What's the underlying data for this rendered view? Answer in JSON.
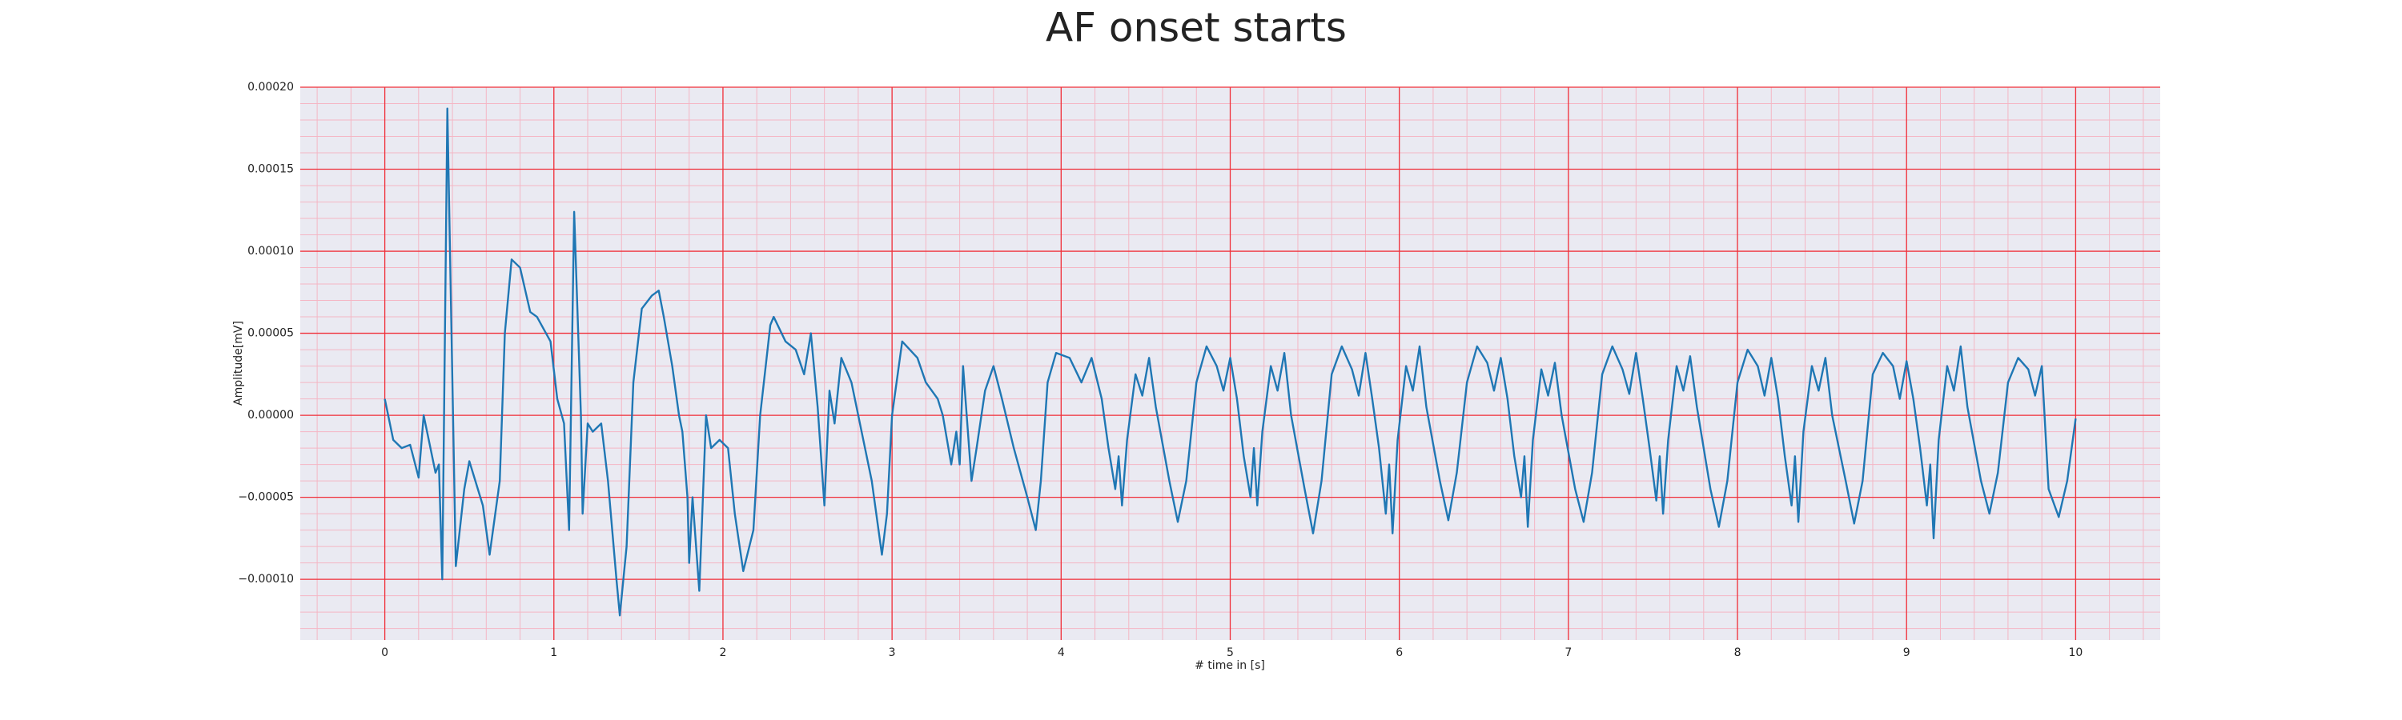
{
  "chart_data": {
    "type": "line",
    "title": "AF onset starts",
    "x_label": "# time in [s]",
    "y_label": "Amplitude[mV]",
    "color": "#1f77b4",
    "grid": true,
    "minor_grid": true,
    "xlim": [
      -0.5,
      10.5
    ],
    "ylim": [
      -0.000137,
      0.0002
    ],
    "xticks": [
      0,
      1,
      2,
      3,
      4,
      5,
      6,
      7,
      8,
      9,
      10
    ],
    "yticks": [
      {
        "value": -0.0001,
        "label": "−0.00010"
      },
      {
        "value": -5e-05,
        "label": "−0.00005"
      },
      {
        "value": 0,
        "label": "0.00000"
      },
      {
        "value": 5e-05,
        "label": "0.00005"
      },
      {
        "value": 0.0001,
        "label": "0.00010"
      },
      {
        "value": 0.00015,
        "label": "0.00015"
      },
      {
        "value": 0.0002,
        "label": "0.00020"
      }
    ],
    "x": [
      0,
      0.05,
      0.1,
      0.15,
      0.2,
      0.23,
      0.3,
      0.32,
      0.34,
      0.37,
      0.42,
      0.47,
      0.5,
      0.58,
      0.62,
      0.68,
      0.71,
      0.75,
      0.8,
      0.86,
      0.9,
      0.98,
      1.02,
      1.06,
      1.09,
      1.12,
      1.16,
      1.17,
      1.2,
      1.23,
      1.28,
      1.32,
      1.37,
      1.39,
      1.43,
      1.47,
      1.52,
      1.58,
      1.62,
      1.65,
      1.7,
      1.74,
      1.76,
      1.79,
      1.8,
      1.82,
      1.86,
      1.9,
      1.93,
      1.98,
      2.03,
      2.07,
      2.12,
      2.18,
      2.22,
      2.28,
      2.3,
      2.37,
      2.43,
      2.48,
      2.52,
      2.56,
      2.6,
      2.63,
      2.66,
      2.7,
      2.76,
      2.8,
      2.88,
      2.94,
      2.97,
      3.0,
      3.06,
      3.15,
      3.2,
      3.27,
      3.3,
      3.35,
      3.38,
      3.4,
      3.42,
      3.47,
      3.5,
      3.55,
      3.6,
      3.65,
      3.72,
      3.8,
      3.85,
      3.88,
      3.92,
      3.97,
      4.05,
      4.12,
      4.18,
      4.24,
      4.28,
      4.32,
      4.34,
      4.36,
      4.39,
      4.44,
      4.48,
      4.52,
      4.56,
      4.64,
      4.69,
      4.74,
      4.8,
      4.86,
      4.92,
      4.96,
      5.0,
      5.04,
      5.08,
      5.12,
      5.14,
      5.16,
      5.19,
      5.24,
      5.28,
      5.32,
      5.36,
      5.44,
      5.49,
      5.54,
      5.6,
      5.66,
      5.72,
      5.76,
      5.8,
      5.84,
      5.88,
      5.92,
      5.94,
      5.96,
      5.99,
      6.04,
      6.08,
      6.12,
      6.16,
      6.24,
      6.29,
      6.34,
      6.4,
      6.46,
      6.52,
      6.56,
      6.6,
      6.64,
      6.68,
      6.72,
      6.74,
      6.76,
      6.79,
      6.84,
      6.88,
      6.92,
      6.96,
      7.04,
      7.09,
      7.14,
      7.2,
      7.26,
      7.32,
      7.36,
      7.4,
      7.44,
      7.48,
      7.52,
      7.54,
      7.56,
      7.59,
      7.64,
      7.68,
      7.72,
      7.76,
      7.84,
      7.89,
      7.94,
      8.0,
      8.06,
      8.12,
      8.16,
      8.2,
      8.24,
      8.28,
      8.32,
      8.34,
      8.36,
      8.39,
      8.44,
      8.48,
      8.52,
      8.56,
      8.64,
      8.69,
      8.74,
      8.8,
      8.86,
      8.92,
      8.96,
      9.0,
      9.04,
      9.08,
      9.12,
      9.14,
      9.16,
      9.19,
      9.24,
      9.28,
      9.32,
      9.36,
      9.44,
      9.49,
      9.54,
      9.6,
      9.66,
      9.72,
      9.76,
      9.8,
      9.84,
      9.9,
      9.95,
      10.0
    ],
    "values": [
      1e-05,
      -1.5e-05,
      -2e-05,
      -1.8e-05,
      -3.8e-05,
      0,
      -3.5e-05,
      -3e-05,
      -0.0001,
      0.000187,
      -9.2e-05,
      -4.5e-05,
      -2.8e-05,
      -5.5e-05,
      -8.5e-05,
      -4e-05,
      5e-05,
      9.5e-05,
      9e-05,
      6.3e-05,
      6e-05,
      4.5e-05,
      1e-05,
      -5e-06,
      -7e-05,
      0.000124,
      0,
      -6e-05,
      -5e-06,
      -1e-05,
      -5e-06,
      -4e-05,
      -0.0001,
      -0.000122,
      -8e-05,
      2e-05,
      6.5e-05,
      7.3e-05,
      7.6e-05,
      6e-05,
      3e-05,
      0,
      -1e-05,
      -5e-05,
      -9e-05,
      -5e-05,
      -0.000107,
      0,
      -2e-05,
      -1.5e-05,
      -2e-05,
      -6e-05,
      -9.5e-05,
      -7e-05,
      0,
      5.5e-05,
      6e-05,
      4.5e-05,
      4e-05,
      2.5e-05,
      5e-05,
      5e-06,
      -5.5e-05,
      1.5e-05,
      -5e-06,
      3.5e-05,
      2e-05,
      0,
      -4e-05,
      -8.5e-05,
      -6e-05,
      0,
      4.5e-05,
      3.5e-05,
      2e-05,
      1e-05,
      0,
      -3e-05,
      -1e-05,
      -3e-05,
      3e-05,
      -4e-05,
      -2e-05,
      1.5e-05,
      3e-05,
      1e-05,
      -2e-05,
      -5e-05,
      -7e-05,
      -4e-05,
      2e-05,
      3.8e-05,
      3.5e-05,
      2e-05,
      3.5e-05,
      1e-05,
      -2e-05,
      -4.5e-05,
      -2.5e-05,
      -5.5e-05,
      -1.5e-05,
      2.5e-05,
      1.2e-05,
      3.5e-05,
      5e-06,
      -4e-05,
      -6.5e-05,
      -4e-05,
      2e-05,
      4.2e-05,
      3e-05,
      1.5e-05,
      3.5e-05,
      1e-05,
      -2.5e-05,
      -5e-05,
      -2e-05,
      -5.5e-05,
      -1e-05,
      3e-05,
      1.5e-05,
      3.8e-05,
      0,
      -4.5e-05,
      -7.2e-05,
      -4e-05,
      2.5e-05,
      4.2e-05,
      2.8e-05,
      1.2e-05,
      3.8e-05,
      1e-05,
      -2e-05,
      -6e-05,
      -3e-05,
      -7.2e-05,
      -1.5e-05,
      3e-05,
      1.5e-05,
      4.2e-05,
      5e-06,
      -4e-05,
      -6.4e-05,
      -3.5e-05,
      2e-05,
      4.2e-05,
      3.2e-05,
      1.5e-05,
      3.5e-05,
      1e-05,
      -2.5e-05,
      -5e-05,
      -2.5e-05,
      -6.8e-05,
      -1.5e-05,
      2.8e-05,
      1.2e-05,
      3.2e-05,
      0,
      -4.5e-05,
      -6.5e-05,
      -3.5e-05,
      2.5e-05,
      4.2e-05,
      2.8e-05,
      1.3e-05,
      3.8e-05,
      1e-05,
      -2e-05,
      -5.2e-05,
      -2.5e-05,
      -6e-05,
      -1.5e-05,
      3e-05,
      1.5e-05,
      3.6e-05,
      5e-06,
      -4.5e-05,
      -6.8e-05,
      -4e-05,
      2e-05,
      4e-05,
      3e-05,
      1.2e-05,
      3.5e-05,
      1e-05,
      -2.5e-05,
      -5.5e-05,
      -2.5e-05,
      -6.5e-05,
      -1e-05,
      3e-05,
      1.5e-05,
      3.5e-05,
      0,
      -4e-05,
      -6.6e-05,
      -4e-05,
      2.5e-05,
      3.8e-05,
      3e-05,
      1e-05,
      3.3e-05,
      1e-05,
      -2e-05,
      -5.5e-05,
      -3e-05,
      -7.5e-05,
      -1.5e-05,
      3e-05,
      1.5e-05,
      4.2e-05,
      5e-06,
      -4e-05,
      -6e-05,
      -3.5e-05,
      2e-05,
      3.5e-05,
      2.8e-05,
      1.2e-05,
      3e-05,
      -4.5e-05,
      -6.2e-05,
      -4e-05,
      -2e-06
    ]
  }
}
